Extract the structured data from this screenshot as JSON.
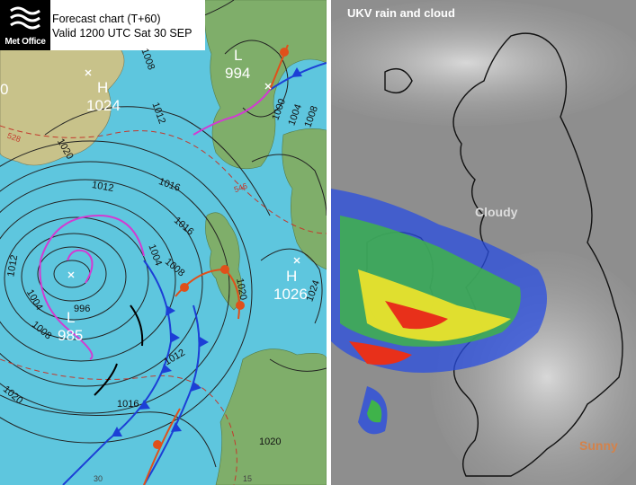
{
  "forecast_chart": {
    "logo_text": "Met Office",
    "title_line1": "Forecast chart (T+60)",
    "title_line2": "Valid 1200 UTC Sat 30 SEP",
    "pressure_centres": [
      {
        "type": "H",
        "value": "1024"
      },
      {
        "type": "L",
        "value": "994"
      },
      {
        "type": "H",
        "value": "1026"
      },
      {
        "type": "L",
        "value": "985"
      }
    ],
    "isobar_labels": [
      "1008",
      "1012",
      "1020",
      "1016",
      "1016",
      "1012",
      "1004",
      "1008",
      "1000",
      "1004",
      "1008",
      "1020",
      "1024",
      "1012",
      "1004",
      "1008",
      "996",
      "1012",
      "1016",
      "1020",
      "1020"
    ],
    "thickness_labels": [
      "528",
      "546"
    ],
    "edge_labels": {
      "left": "0",
      "bottom1": "30",
      "bottom2": "15"
    }
  },
  "rain_panel": {
    "title": "UKV rain and cloud",
    "label_cloudy": "Cloudy",
    "label_sunny": "Sunny"
  },
  "colors": {
    "sea": "#5ec6de",
    "land_low": "#c8c28a",
    "land_green": "#7fae6a",
    "cold_front": "#1c3fd6",
    "warm_front": "#e0501a",
    "occluded_front": "#d23bd2",
    "isobar": "#222222",
    "thickness": "#c4392d"
  }
}
